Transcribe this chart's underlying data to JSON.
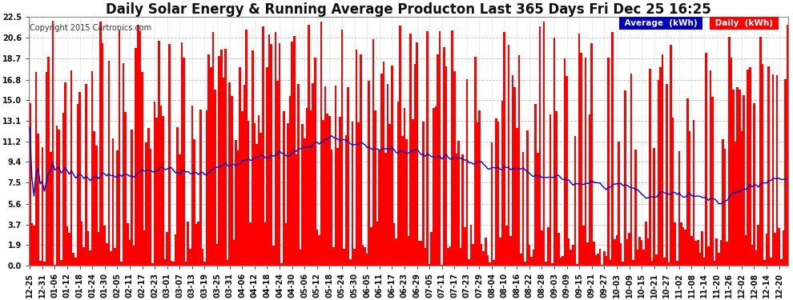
{
  "title": "Daily Solar Energy & Running Average Producton Last 365 Days Fri Dec 25 16:25",
  "copyright": "Copyright 2015 Cartronics.com",
  "ylim": [
    0.0,
    22.5
  ],
  "yticks": [
    0.0,
    1.9,
    3.7,
    5.6,
    7.5,
    9.4,
    11.2,
    13.1,
    15.0,
    16.8,
    18.7,
    20.6,
    22.5
  ],
  "bar_color": "#ff0000",
  "avg_line_color": "#0000bb",
  "background_color": "#ffffff",
  "grid_color": "#aaaaaa",
  "legend_avg_bg": "#0000bb",
  "legend_daily_bg": "#ff0000",
  "legend_text_color": "#ffffff",
  "title_fontsize": 12,
  "tick_fontsize": 7,
  "num_bars": 365,
  "xtick_labels": [
    "12-25",
    "12-31",
    "01-06",
    "01-12",
    "01-18",
    "01-24",
    "01-30",
    "02-05",
    "02-11",
    "02-17",
    "02-23",
    "03-01",
    "03-07",
    "03-13",
    "03-19",
    "03-25",
    "03-31",
    "04-06",
    "04-12",
    "04-18",
    "04-24",
    "04-30",
    "05-06",
    "05-12",
    "05-18",
    "05-24",
    "05-30",
    "06-05",
    "06-11",
    "06-17",
    "06-23",
    "06-29",
    "07-05",
    "07-11",
    "07-17",
    "07-23",
    "07-29",
    "08-04",
    "08-10",
    "08-16",
    "08-22",
    "08-28",
    "09-03",
    "09-09",
    "09-15",
    "09-21",
    "09-27",
    "10-03",
    "10-09",
    "10-15",
    "10-21",
    "10-27",
    "11-02",
    "11-08",
    "11-14",
    "11-20",
    "11-26",
    "12-02",
    "12-08",
    "12-14",
    "12-20"
  ]
}
